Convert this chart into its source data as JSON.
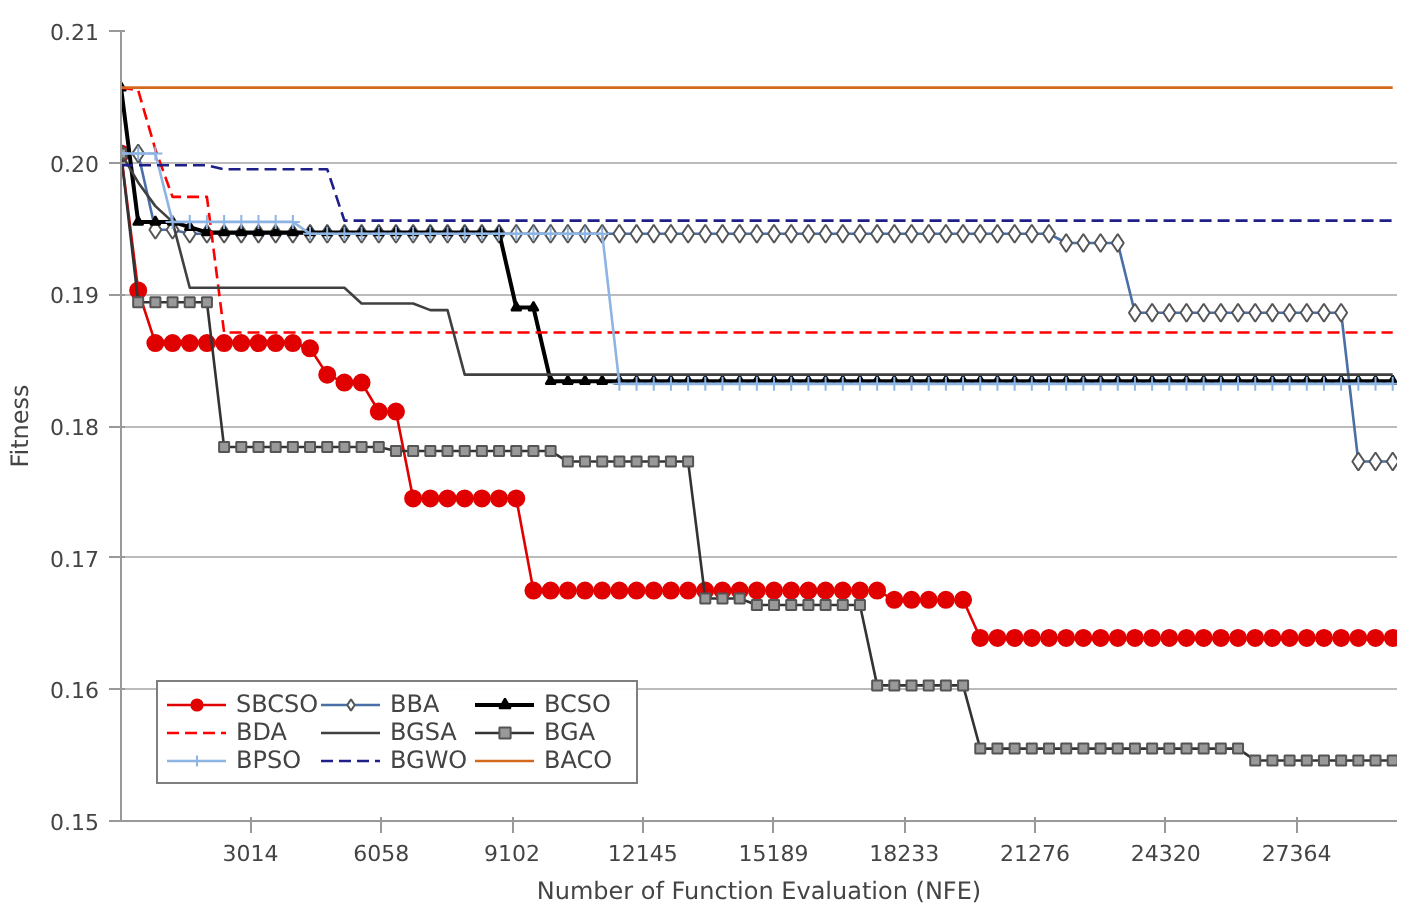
{
  "chart_data": {
    "type": "line",
    "xlabel": "Number of Function Evaluation (NFE)",
    "ylabel": "Fitness",
    "x": [
      0,
      400,
      800,
      1200,
      1600,
      2000,
      2400,
      2800,
      3200,
      3600,
      4000,
      4400,
      4800,
      5200,
      5600,
      6000,
      6400,
      6800,
      7200,
      7600,
      8000,
      8400,
      8800,
      9200,
      9600,
      10000,
      10400,
      10800,
      11200,
      11600,
      12000,
      12400,
      12800,
      13200,
      13600,
      14000,
      14400,
      14800,
      15200,
      15600,
      16000,
      16400,
      16800,
      17200,
      17600,
      18000,
      18400,
      18800,
      19200,
      19600,
      20000,
      20400,
      20800,
      21200,
      21600,
      22000,
      22400,
      22800,
      23200,
      23600,
      24000,
      24400,
      24800,
      25200,
      25600,
      26000,
      26400,
      26800,
      27200,
      27600,
      28000,
      28400,
      28800,
      29200,
      29600
    ],
    "xlim": [
      0,
      29700
    ],
    "xticks": [
      3014,
      6058,
      9102,
      12145,
      15189,
      18233,
      21276,
      24320,
      27364
    ],
    "ylim": [
      0.15,
      0.21
    ],
    "yticks": [
      0.15,
      0.16,
      0.17,
      0.18,
      0.19,
      {
        "value": 0.2,
        "label": "0.20"
      },
      0.21
    ],
    "grid": "y",
    "legend": "bottom left",
    "series": [
      {
        "name": "SBCSO",
        "color": "#e00000",
        "marker": "circle",
        "line_style": "solid",
        "values": [
          0.2007,
          0.1903,
          0.1863,
          0.1863,
          0.1863,
          0.1863,
          0.1863,
          0.1863,
          0.1863,
          0.1863,
          0.1863,
          0.1859,
          0.1839,
          0.1833,
          0.1833,
          0.1811,
          0.1811,
          0.1745,
          0.1745,
          0.1745,
          0.1745,
          0.1745,
          0.1745,
          0.1745,
          0.1675,
          0.1675,
          0.1675,
          0.1675,
          0.1675,
          0.1675,
          0.1675,
          0.1675,
          0.1675,
          0.1675,
          0.1675,
          0.1675,
          0.1675,
          0.1675,
          0.1675,
          0.1675,
          0.1675,
          0.1675,
          0.1675,
          0.1675,
          0.1675,
          0.1668,
          0.1668,
          0.1668,
          0.1668,
          0.1668,
          0.1639,
          0.1639,
          0.1639,
          0.1639,
          0.1639,
          0.1639,
          0.1639,
          0.1639,
          0.1639,
          0.1639,
          0.1639,
          0.1639,
          0.1639,
          0.1639,
          0.1639,
          0.1639,
          0.1639,
          0.1639,
          0.1639,
          0.1639,
          0.1639,
          0.1639,
          0.1639,
          0.1639,
          0.1639
        ]
      },
      {
        "name": "BBA",
        "color": "#4a6fa5",
        "marker": "diamond",
        "line_style": "solid",
        "values": [
          0.2007,
          0.2007,
          0.1949,
          0.1949,
          0.1946,
          0.1946,
          0.1946,
          0.1946,
          0.1946,
          0.1946,
          0.1946,
          0.1946,
          0.1946,
          0.1946,
          0.1946,
          0.1946,
          0.1946,
          0.1946,
          0.1946,
          0.1946,
          0.1946,
          0.1946,
          0.1946,
          0.1946,
          0.1946,
          0.1946,
          0.1946,
          0.1946,
          0.1946,
          0.1946,
          0.1946,
          0.1946,
          0.1946,
          0.1946,
          0.1946,
          0.1946,
          0.1946,
          0.1946,
          0.1946,
          0.1946,
          0.1946,
          0.1946,
          0.1946,
          0.1946,
          0.1946,
          0.1946,
          0.1946,
          0.1946,
          0.1946,
          0.1946,
          0.1946,
          0.1946,
          0.1946,
          0.1946,
          0.1946,
          0.1939,
          0.1939,
          0.1939,
          0.1939,
          0.1886,
          0.1886,
          0.1886,
          0.1886,
          0.1886,
          0.1886,
          0.1886,
          0.1886,
          0.1886,
          0.1886,
          0.1886,
          0.1886,
          0.1886,
          0.1773,
          0.1773,
          0.1773
        ]
      },
      {
        "name": "BCSO",
        "color": "#000000",
        "marker": "triangle",
        "line_style": "solid",
        "values": [
          0.2057,
          0.1955,
          0.1955,
          0.1955,
          0.1951,
          0.1947,
          0.1947,
          0.1947,
          0.1947,
          0.1947,
          0.1947,
          0.1947,
          0.1947,
          0.1947,
          0.1947,
          0.1947,
          0.1947,
          0.1947,
          0.1947,
          0.1947,
          0.1947,
          0.1947,
          0.1947,
          0.189,
          0.189,
          0.1834,
          0.1834,
          0.1834,
          0.1834,
          0.1834,
          0.1834,
          0.1834,
          0.1834,
          0.1834,
          0.1834,
          0.1834,
          0.1834,
          0.1834,
          0.1834,
          0.1834,
          0.1834,
          0.1834,
          0.1834,
          0.1834,
          0.1834,
          0.1834,
          0.1834,
          0.1834,
          0.1834,
          0.1834,
          0.1834,
          0.1834,
          0.1834,
          0.1834,
          0.1834,
          0.1834,
          0.1834,
          0.1834,
          0.1834,
          0.1834,
          0.1834,
          0.1834,
          0.1834,
          0.1834,
          0.1834,
          0.1834,
          0.1834,
          0.1834,
          0.1834,
          0.1834,
          0.1834,
          0.1834,
          0.1834,
          0.1834,
          0.1834
        ]
      },
      {
        "name": "BDA",
        "color": "#ff0000",
        "marker": "none",
        "line_style": "dashed",
        "x": [
          0,
          400,
          800,
          1200,
          2000,
          2400,
          29600
        ],
        "values": [
          0.2057,
          0.2055,
          0.201,
          0.1974,
          0.1974,
          0.1871,
          0.1871
        ]
      },
      {
        "name": "BGSA",
        "color": "#404040",
        "marker": "none",
        "line_style": "solid",
        "x": [
          0,
          400,
          800,
          1200,
          1600,
          5200,
          5600,
          6800,
          7200,
          7600,
          8000,
          29600
        ],
        "values": [
          0.2007,
          0.1985,
          0.1967,
          0.1955,
          0.1905,
          0.1905,
          0.1893,
          0.1893,
          0.1888,
          0.1888,
          0.1839,
          0.1839
        ]
      },
      {
        "name": "BGA",
        "color": "#333333",
        "marker": "square",
        "line_style": "solid",
        "values": [
          0.2007,
          0.1894,
          0.1894,
          0.1894,
          0.1894,
          0.1894,
          0.1784,
          0.1784,
          0.1784,
          0.1784,
          0.1784,
          0.1784,
          0.1784,
          0.1784,
          0.1784,
          0.1784,
          0.1781,
          0.1781,
          0.1781,
          0.1781,
          0.1781,
          0.1781,
          0.1781,
          0.1781,
          0.1781,
          0.1781,
          0.1773,
          0.1773,
          0.1773,
          0.1773,
          0.1773,
          0.1773,
          0.1773,
          0.1773,
          0.1669,
          0.1669,
          0.1669,
          0.1664,
          0.1664,
          0.1664,
          0.1664,
          0.1664,
          0.1664,
          0.1664,
          0.1603,
          0.1603,
          0.1603,
          0.1603,
          0.1603,
          0.1603,
          0.1555,
          0.1555,
          0.1555,
          0.1555,
          0.1555,
          0.1555,
          0.1555,
          0.1555,
          0.1555,
          0.1555,
          0.1555,
          0.1555,
          0.1555,
          0.1555,
          0.1555,
          0.1555,
          0.1546,
          0.1546,
          0.1546,
          0.1546,
          0.1546,
          0.1546,
          0.1546,
          0.1546,
          0.1546
        ]
      },
      {
        "name": "BPSO",
        "color": "#8db4e2",
        "marker": "cross",
        "line_style": "solid",
        "values": [
          0.2007,
          0.2007,
          0.2007,
          0.1955,
          0.1955,
          0.1955,
          0.1955,
          0.1955,
          0.1955,
          0.1955,
          0.1955,
          0.1946,
          0.1946,
          0.1946,
          0.1946,
          0.1946,
          0.1946,
          0.1946,
          0.1946,
          0.1946,
          0.1946,
          0.1946,
          0.1946,
          0.1946,
          0.1946,
          0.1946,
          0.1946,
          0.1946,
          0.1946,
          0.1832,
          0.1832,
          0.1832,
          0.1832,
          0.1832,
          0.1832,
          0.1832,
          0.1832,
          0.1832,
          0.1832,
          0.1832,
          0.1832,
          0.1832,
          0.1832,
          0.1832,
          0.1832,
          0.1832,
          0.1832,
          0.1832,
          0.1832,
          0.1832,
          0.1832,
          0.1832,
          0.1832,
          0.1832,
          0.1832,
          0.1832,
          0.1832,
          0.1832,
          0.1832,
          0.1832,
          0.1832,
          0.1832,
          0.1832,
          0.1832,
          0.1832,
          0.1832,
          0.1832,
          0.1832,
          0.1832,
          0.1832,
          0.1832,
          0.1832,
          0.1832,
          0.1832,
          0.1832
        ]
      },
      {
        "name": "BGWO",
        "color": "#1f1f8a",
        "marker": "none",
        "line_style": "dashed",
        "x": [
          0,
          2000,
          2400,
          4800,
          5200,
          29600
        ],
        "values": [
          0.1998,
          0.1998,
          0.1995,
          0.1995,
          0.1956,
          0.1956
        ]
      },
      {
        "name": "BACO",
        "color": "#d2691e",
        "marker": "none",
        "line_style": "solid",
        "x": [
          0,
          29600
        ],
        "values": [
          0.2057,
          0.2057
        ]
      }
    ]
  }
}
